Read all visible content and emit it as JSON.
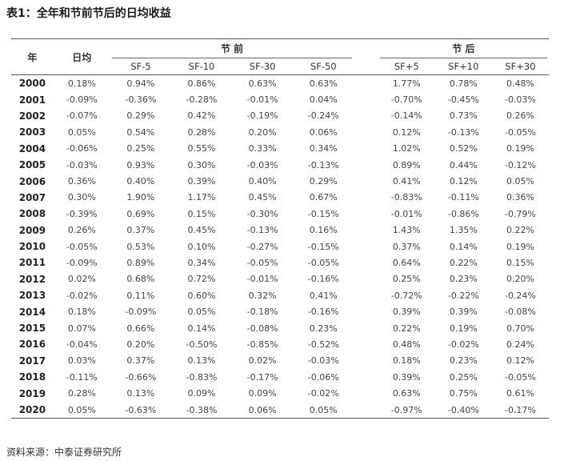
{
  "title": "表1：全年和节前节后的日均收益",
  "source": "资料来源：中泰证券研究所",
  "table": {
    "col_year": "年",
    "col_day": "日均",
    "group_pre": "节 前",
    "group_post": "节 后",
    "pre_cols": [
      "SF-5",
      "SF-10",
      "SF-30",
      "SF-50"
    ],
    "post_cols": [
      "SF+5",
      "SF+10",
      "SF+30"
    ],
    "rows": [
      {
        "year": "2000",
        "day": "0.18%",
        "pre": [
          "0.94%",
          "0.86%",
          "0.63%",
          "0.63%"
        ],
        "post": [
          "1.77%",
          "0.78%",
          "0.48%"
        ]
      },
      {
        "year": "2001",
        "day": "-0.09%",
        "pre": [
          "-0.36%",
          "-0.28%",
          "-0.01%",
          "0.04%"
        ],
        "post": [
          "-0.70%",
          "-0.45%",
          "-0.03%"
        ]
      },
      {
        "year": "2002",
        "day": "-0.07%",
        "pre": [
          "0.29%",
          "0.42%",
          "-0.19%",
          "-0.24%"
        ],
        "post": [
          "-0.14%",
          "0.73%",
          "0.26%"
        ]
      },
      {
        "year": "2003",
        "day": "0.05%",
        "pre": [
          "0.54%",
          "0.28%",
          "0.20%",
          "0.06%"
        ],
        "post": [
          "0.12%",
          "-0.13%",
          "-0.05%"
        ]
      },
      {
        "year": "2004",
        "day": "-0.06%",
        "pre": [
          "0.25%",
          "0.55%",
          "0.33%",
          "0.34%"
        ],
        "post": [
          "1.02%",
          "0.52%",
          "0.19%"
        ]
      },
      {
        "year": "2005",
        "day": "-0.03%",
        "pre": [
          "0.93%",
          "0.30%",
          "-0.03%",
          "-0.13%"
        ],
        "post": [
          "0.89%",
          "0.44%",
          "-0.12%"
        ]
      },
      {
        "year": "2006",
        "day": "0.36%",
        "pre": [
          "0.40%",
          "0.39%",
          "0.40%",
          "0.29%"
        ],
        "post": [
          "0.41%",
          "0.12%",
          "0.05%"
        ]
      },
      {
        "year": "2007",
        "day": "0.30%",
        "pre": [
          "1.90%",
          "1.17%",
          "0.45%",
          "0.67%"
        ],
        "post": [
          "-0.83%",
          "-0.11%",
          "0.36%"
        ]
      },
      {
        "year": "2008",
        "day": "-0.39%",
        "pre": [
          "0.69%",
          "0.15%",
          "-0.30%",
          "-0.15%"
        ],
        "post": [
          "-0.01%",
          "-0.86%",
          "-0.79%"
        ]
      },
      {
        "year": "2009",
        "day": "0.26%",
        "pre": [
          "0.37%",
          "0.45%",
          "-0.13%",
          "0.16%"
        ],
        "post": [
          "1.43%",
          "1.35%",
          "0.22%"
        ]
      },
      {
        "year": "2010",
        "day": "-0.05%",
        "pre": [
          "0.53%",
          "0.10%",
          "-0.27%",
          "-0.15%"
        ],
        "post": [
          "0.37%",
          "0.14%",
          "0.19%"
        ]
      },
      {
        "year": "2011",
        "day": "-0.09%",
        "pre": [
          "0.89%",
          "0.34%",
          "-0.05%",
          "-0.05%"
        ],
        "post": [
          "0.64%",
          "0.22%",
          "0.15%"
        ]
      },
      {
        "year": "2012",
        "day": "0.02%",
        "pre": [
          "0.68%",
          "0.72%",
          "-0.01%",
          "-0.16%"
        ],
        "post": [
          "0.25%",
          "0.23%",
          "0.20%"
        ]
      },
      {
        "year": "2013",
        "day": "-0.02%",
        "pre": [
          "0.11%",
          "0.60%",
          "0.32%",
          "0.41%"
        ],
        "post": [
          "-0.72%",
          "-0.22%",
          "-0.24%"
        ]
      },
      {
        "year": "2014",
        "day": "0.18%",
        "pre": [
          "-0.09%",
          "0.05%",
          "-0.18%",
          "-0.16%"
        ],
        "post": [
          "0.39%",
          "0.39%",
          "-0.08%"
        ]
      },
      {
        "year": "2015",
        "day": "0.07%",
        "pre": [
          "0.66%",
          "0.14%",
          "-0.08%",
          "0.23%"
        ],
        "post": [
          "0.22%",
          "0.19%",
          "0.70%"
        ]
      },
      {
        "year": "2016",
        "day": "-0.04%",
        "pre": [
          "0.20%",
          "-0.50%",
          "-0.85%",
          "-0.52%"
        ],
        "post": [
          "0.48%",
          "-0.02%",
          "0.24%"
        ]
      },
      {
        "year": "2017",
        "day": "0.03%",
        "pre": [
          "0.37%",
          "0.13%",
          "0.02%",
          "-0.03%"
        ],
        "post": [
          "0.18%",
          "0.23%",
          "0.12%"
        ]
      },
      {
        "year": "2018",
        "day": "-0.11%",
        "pre": [
          "-0.66%",
          "-0.83%",
          "-0.17%",
          "-0.06%"
        ],
        "post": [
          "0.39%",
          "0.25%",
          "-0.05%"
        ]
      },
      {
        "year": "2019",
        "day": "0.28%",
        "pre": [
          "0.13%",
          "0.09%",
          "0.09%",
          "-0.02%"
        ],
        "post": [
          "0.63%",
          "0.75%",
          "0.61%"
        ]
      },
      {
        "year": "2020",
        "day": "0.05%",
        "pre": [
          "-0.63%",
          "-0.38%",
          "0.06%",
          "0.05%"
        ],
        "post": [
          "-0.97%",
          "-0.40%",
          "-0.17%"
        ]
      }
    ]
  }
}
